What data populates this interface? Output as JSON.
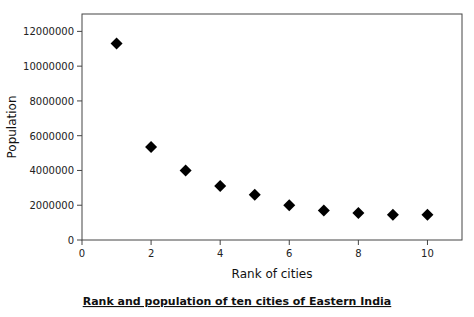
{
  "chart_data": {
    "type": "scatter",
    "title": "Rank and population of ten cities of Eastern India",
    "x_label": "Rank of cities",
    "y_label": "Population",
    "x": [
      1,
      2,
      3,
      4,
      5,
      6,
      7,
      8,
      9,
      10
    ],
    "values": [
      11300000,
      5350000,
      4000000,
      3100000,
      2600000,
      2000000,
      1700000,
      1550000,
      1450000,
      1450000
    ],
    "xlim": [
      0,
      11
    ],
    "ylim": [
      0,
      13000000
    ],
    "xticks": [
      0,
      2,
      4,
      6,
      8,
      10
    ],
    "yticks": [
      0,
      2000000,
      4000000,
      6000000,
      8000000,
      10000000,
      12000000
    ],
    "marker": "diamond",
    "color": "black"
  }
}
